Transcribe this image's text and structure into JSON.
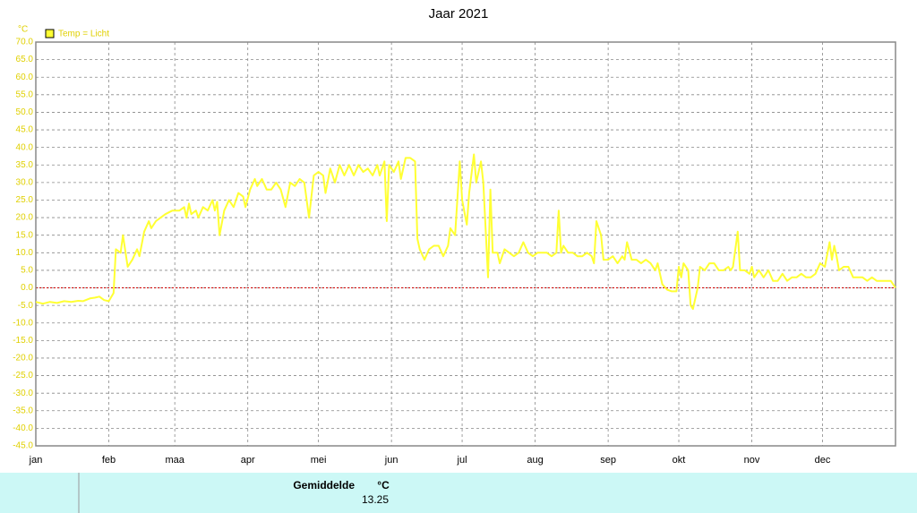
{
  "chart_data": {
    "type": "line",
    "title": "Jaar 2021",
    "y_unit": "°C",
    "legend": "top-left",
    "grid": true,
    "zero_line": true,
    "xlim": [
      0,
      365
    ],
    "xticks": [
      {
        "value": 0,
        "label": "jan"
      },
      {
        "value": 31,
        "label": "feb"
      },
      {
        "value": 59,
        "label": "maa"
      },
      {
        "value": 90,
        "label": "apr"
      },
      {
        "value": 120,
        "label": "mei"
      },
      {
        "value": 151,
        "label": "jun"
      },
      {
        "value": 181,
        "label": "jul"
      },
      {
        "value": 212,
        "label": "aug"
      },
      {
        "value": 243,
        "label": "sep"
      },
      {
        "value": 273,
        "label": "okt"
      },
      {
        "value": 304,
        "label": "nov"
      },
      {
        "value": 334,
        "label": "dec"
      }
    ],
    "ylim": [
      -45,
      70
    ],
    "yticks": [
      {
        "value": 70,
        "label": "70.0"
      },
      {
        "value": 65,
        "label": "65.0"
      },
      {
        "value": 60,
        "label": "60.0"
      },
      {
        "value": 55,
        "label": "55.0"
      },
      {
        "value": 50,
        "label": "50.0"
      },
      {
        "value": 45,
        "label": "45.0"
      },
      {
        "value": 40,
        "label": "40.0"
      },
      {
        "value": 35,
        "label": "35.0"
      },
      {
        "value": 30,
        "label": "30.0"
      },
      {
        "value": 25,
        "label": "25.0"
      },
      {
        "value": 20,
        "label": "20.0"
      },
      {
        "value": 15,
        "label": "15.0"
      },
      {
        "value": 10,
        "label": "10.0"
      },
      {
        "value": 5,
        "label": "5.0"
      },
      {
        "value": 0,
        "label": "0.0"
      },
      {
        "value": -5,
        "label": "-5.0"
      },
      {
        "value": -10,
        "label": "-10.0"
      },
      {
        "value": -15,
        "label": "-15.0"
      },
      {
        "value": -20,
        "label": "-20.0"
      },
      {
        "value": -25,
        "label": "-25.0"
      },
      {
        "value": -30,
        "label": "-30.0"
      },
      {
        "value": -35,
        "label": "-35.0"
      },
      {
        "value": -40,
        "label": "-40.0"
      },
      {
        "value": -45,
        "label": "-45.0"
      }
    ],
    "x": [
      0,
      3,
      6,
      9,
      12,
      15,
      18,
      20,
      23,
      25,
      27,
      29,
      31,
      33,
      34,
      36,
      37,
      39,
      41,
      43,
      44,
      46,
      48,
      49,
      51,
      53,
      55,
      58,
      61,
      63,
      64,
      65,
      66,
      68,
      69,
      71,
      73,
      75,
      76,
      77,
      78,
      80,
      82,
      84,
      86,
      88,
      89,
      91,
      93,
      94,
      96,
      98,
      100,
      102,
      104,
      106,
      108,
      110,
      112,
      114,
      116,
      118,
      120,
      122,
      123,
      125,
      127,
      129,
      131,
      133,
      135,
      137,
      139,
      141,
      143,
      145,
      146,
      148,
      149,
      150,
      152,
      154,
      155,
      157,
      159,
      161,
      162,
      163,
      165,
      167,
      169,
      171,
      173,
      175,
      176,
      178,
      180,
      181,
      183,
      184,
      186,
      187,
      189,
      190,
      192,
      193,
      194,
      196,
      197,
      199,
      201,
      203,
      205,
      207,
      209,
      211,
      213,
      215,
      217,
      219,
      221,
      222,
      223,
      224,
      226,
      228,
      230,
      232,
      234,
      236,
      237,
      238,
      240,
      241,
      243,
      245,
      247,
      249,
      250,
      251,
      253,
      255,
      257,
      259,
      261,
      263,
      264,
      266,
      268,
      270,
      272,
      273,
      274,
      275,
      277,
      278,
      279,
      281,
      282,
      284,
      286,
      288,
      290,
      292,
      294,
      295,
      296,
      298,
      299,
      301,
      303,
      304,
      305,
      307,
      309,
      311,
      313,
      315,
      317,
      319,
      321,
      323,
      325,
      327,
      329,
      331,
      333,
      335,
      337,
      338,
      339,
      340,
      341,
      343,
      345,
      347,
      349,
      351,
      353,
      355,
      357,
      359,
      363,
      365
    ],
    "series": [
      {
        "name": "Temp = Licht",
        "color": "#ffff33",
        "values": [
          -4,
          -4.5,
          -4,
          -4.3,
          -3.8,
          -4,
          -3.7,
          -3.8,
          -3,
          -2.8,
          -2.5,
          -3.5,
          -3.8,
          -1.5,
          11,
          10,
          15,
          6,
          8,
          11,
          9,
          16,
          19,
          17,
          19,
          20,
          21,
          22,
          22,
          23,
          20,
          24,
          21,
          22,
          20,
          23,
          22,
          25,
          22,
          24.5,
          15,
          22,
          25,
          23,
          27,
          26,
          23,
          28,
          31,
          29,
          31,
          28,
          28,
          30,
          28,
          23,
          30,
          29,
          31,
          30,
          20,
          32,
          33,
          32,
          27,
          34,
          30,
          35,
          32,
          35,
          32,
          35,
          33,
          34,
          32,
          35,
          32,
          36,
          19,
          35,
          33,
          36,
          31,
          37,
          37,
          36,
          14,
          11,
          8,
          11,
          12,
          12,
          9,
          12,
          17,
          15,
          36,
          25,
          18,
          27,
          38,
          30,
          36,
          30,
          3,
          28,
          10,
          10,
          7,
          11,
          10,
          9,
          10,
          13,
          10,
          9,
          10,
          10,
          10,
          9,
          10,
          22,
          10,
          12,
          10,
          10,
          9,
          9,
          10,
          9,
          7,
          19,
          15,
          8,
          8,
          9,
          7,
          9,
          8,
          13,
          8,
          8,
          7,
          8,
          7,
          5,
          7,
          1,
          -0.5,
          -1,
          -1,
          6,
          3,
          7,
          5,
          -5,
          -6,
          0,
          6,
          5,
          7,
          7,
          5,
          5,
          6,
          5,
          6,
          16,
          5,
          5,
          4,
          6,
          3,
          5,
          3,
          5,
          2,
          2,
          4,
          2,
          3,
          3,
          4,
          3,
          3,
          4,
          7,
          6,
          13,
          8,
          12,
          9,
          5,
          6,
          6,
          3,
          3,
          3,
          2,
          3,
          2,
          2,
          2,
          0
        ]
      }
    ]
  },
  "summary": {
    "label": "Gemiddelde",
    "unit": "°C",
    "value": 13.25
  }
}
